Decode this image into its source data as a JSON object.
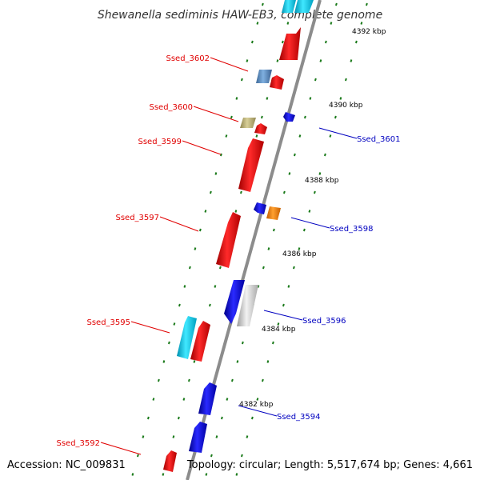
{
  "title": "Shewanella sediminis HAW-EB3, complete genome",
  "accession": "Accession: NC_009831",
  "topology": "Topology: circular; Length: 5,517,674 bp; Genes: 4,661",
  "colors": {
    "forward_label": "#e00000",
    "reverse_label": "#0000c0",
    "backbone": "#8c8c8c",
    "tick": "#1a7a1a"
  },
  "scale_labels": [
    "4392 kbp",
    "4390 kbp",
    "4388 kbp",
    "4386 kbp",
    "4384 kbp",
    "4382 kbp"
  ],
  "forward_labels": [
    "Ssed_3602",
    "Ssed_3600",
    "Ssed_3599",
    "Ssed_3597",
    "Ssed_3595",
    "Ssed_3592"
  ],
  "reverse_labels": [
    "Ssed_3601",
    "Ssed_3598",
    "Ssed_3596",
    "Ssed_3594"
  ]
}
